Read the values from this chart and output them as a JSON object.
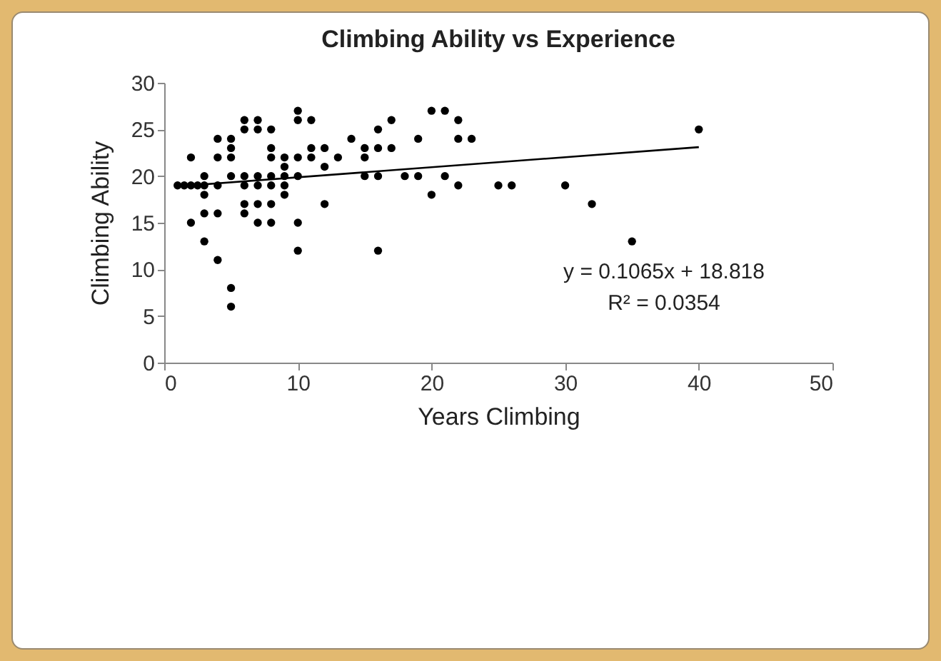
{
  "chart_data": {
    "type": "scatter",
    "title": "Climbing Ability vs Experience",
    "xlabel": "Years Climbing",
    "ylabel": "Climbing Ability",
    "xlim": [
      0,
      50
    ],
    "xticks": [
      0,
      10,
      20,
      30,
      40,
      50
    ],
    "ylim": [
      0,
      30
    ],
    "yticks": [
      0,
      5,
      10,
      15,
      20,
      25,
      30
    ],
    "grid": false,
    "marker": "circle",
    "annotations": [
      "y = 0.1065x + 18.818",
      "R² = 0.0354"
    ],
    "series": [
      {
        "color": "#000000",
        "x": [
          1,
          1.5,
          2,
          2.5,
          3,
          2,
          2,
          3,
          3,
          3,
          3,
          4,
          4,
          4,
          5,
          5,
          4,
          5,
          5,
          5,
          4,
          6,
          6,
          7,
          7,
          8,
          6,
          5,
          6,
          6,
          6,
          7,
          7,
          7,
          7,
          8,
          8,
          8,
          8,
          8,
          8,
          9,
          9,
          9,
          9,
          9,
          10,
          10,
          10,
          10,
          10,
          10,
          11,
          11,
          11,
          12,
          12,
          12,
          13,
          14,
          15,
          15,
          15,
          16,
          16,
          16,
          16,
          17,
          17,
          18,
          19,
          19,
          20,
          20,
          21,
          21,
          22,
          22,
          22,
          23,
          25,
          26,
          30,
          32,
          35,
          40
        ],
        "values": [
          19,
          19,
          19,
          19,
          19,
          22,
          15,
          20,
          18,
          16,
          13,
          16,
          11,
          19,
          6,
          8,
          22,
          22,
          23,
          24,
          24,
          26,
          25,
          26,
          25,
          25,
          20,
          20,
          19,
          17,
          16,
          20,
          19,
          17,
          15,
          20,
          22,
          23,
          19,
          17,
          15,
          22,
          19,
          18,
          20,
          21,
          27,
          26,
          22,
          20,
          15,
          12,
          26,
          22,
          23,
          23,
          21,
          17,
          22,
          24,
          23,
          22,
          20,
          25,
          23,
          20,
          12,
          26,
          23,
          20,
          24,
          20,
          27,
          18,
          27,
          20,
          26,
          24,
          19,
          24,
          19,
          19,
          19,
          17,
          13,
          25
        ]
      },
      {
        "type": "line",
        "color": "#000000",
        "marker": "none",
        "x": [
          1,
          40
        ],
        "values": [
          18.9,
          23.1
        ]
      }
    ]
  }
}
